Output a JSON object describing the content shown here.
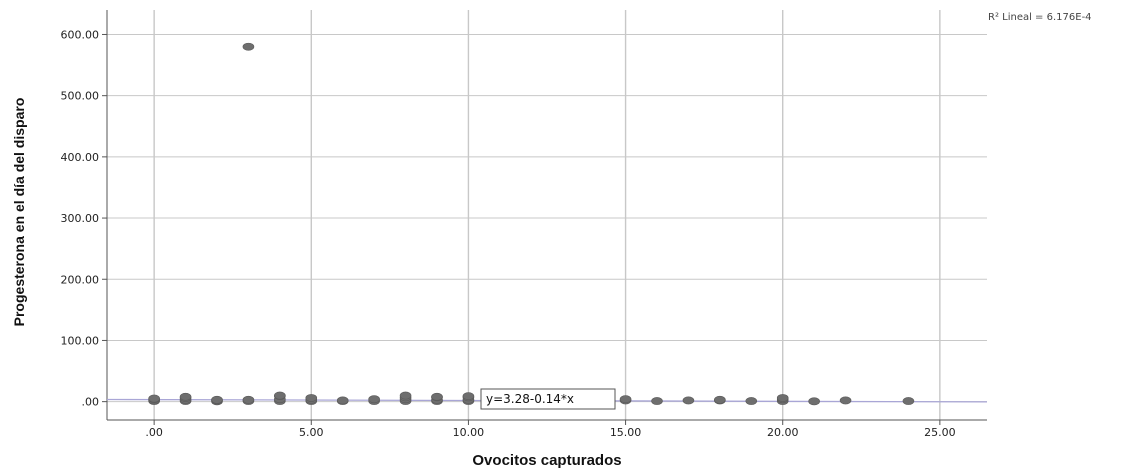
{
  "chart_data": {
    "type": "scatter",
    "xlabel": "Ovocitos capturados",
    "ylabel": "Progesterona en el día del disparo",
    "xlim": [
      -1.5,
      26.5
    ],
    "ylim": [
      -30,
      640
    ],
    "x_ticks": [
      0,
      5,
      10,
      15,
      20,
      25
    ],
    "y_ticks": [
      0,
      100,
      200,
      300,
      400,
      500,
      600
    ],
    "x_tick_labels": [
      ".00",
      "5.00",
      "10.00",
      "15.00",
      "20.00",
      "25.00"
    ],
    "y_tick_labels": [
      ".00",
      "100.00",
      "200.00",
      "300.00",
      "400.00",
      "500.00",
      "600.00"
    ],
    "grid": true,
    "r2_label": "R² Lineal = 6.176E-4",
    "fit_equation": "y=3.28-0.14*x",
    "fit": {
      "intercept": 3.28,
      "slope": -0.14
    },
    "colors": {
      "point": "#6e6e6e",
      "fit_line": "#a9a6d6",
      "grid": "#c8c8c8"
    },
    "points": [
      {
        "x": 0,
        "y": 1
      },
      {
        "x": 0,
        "y": 2
      },
      {
        "x": 0,
        "y": 4
      },
      {
        "x": 0,
        "y": 5
      },
      {
        "x": 1,
        "y": 1
      },
      {
        "x": 1,
        "y": 3
      },
      {
        "x": 1,
        "y": 6
      },
      {
        "x": 1,
        "y": 8
      },
      {
        "x": 2,
        "y": 0.5
      },
      {
        "x": 2,
        "y": 2
      },
      {
        "x": 2,
        "y": 3
      },
      {
        "x": 3,
        "y": 580
      },
      {
        "x": 3,
        "y": 1
      },
      {
        "x": 3,
        "y": 3
      },
      {
        "x": 4,
        "y": 1
      },
      {
        "x": 4,
        "y": 4
      },
      {
        "x": 4,
        "y": 9
      },
      {
        "x": 4,
        "y": 10
      },
      {
        "x": 5,
        "y": 1
      },
      {
        "x": 5,
        "y": 3
      },
      {
        "x": 5,
        "y": 6
      },
      {
        "x": 6,
        "y": 1
      },
      {
        "x": 6,
        "y": 2
      },
      {
        "x": 7,
        "y": 1
      },
      {
        "x": 7,
        "y": 4
      },
      {
        "x": 8,
        "y": 1
      },
      {
        "x": 8,
        "y": 4
      },
      {
        "x": 8,
        "y": 7
      },
      {
        "x": 8,
        "y": 10
      },
      {
        "x": 9,
        "y": 1
      },
      {
        "x": 9,
        "y": 3
      },
      {
        "x": 9,
        "y": 7
      },
      {
        "x": 9,
        "y": 8
      },
      {
        "x": 10,
        "y": 1
      },
      {
        "x": 10,
        "y": 3
      },
      {
        "x": 10,
        "y": 7
      },
      {
        "x": 10,
        "y": 9
      },
      {
        "x": 15,
        "y": 2
      },
      {
        "x": 15,
        "y": 4
      },
      {
        "x": 16,
        "y": 1
      },
      {
        "x": 17,
        "y": 2
      },
      {
        "x": 18,
        "y": 2
      },
      {
        "x": 18,
        "y": 3
      },
      {
        "x": 19,
        "y": 1
      },
      {
        "x": 20,
        "y": 1
      },
      {
        "x": 20,
        "y": 4
      },
      {
        "x": 20,
        "y": 6
      },
      {
        "x": 21,
        "y": 0.5
      },
      {
        "x": 22,
        "y": 2
      },
      {
        "x": 24,
        "y": 1
      }
    ]
  }
}
